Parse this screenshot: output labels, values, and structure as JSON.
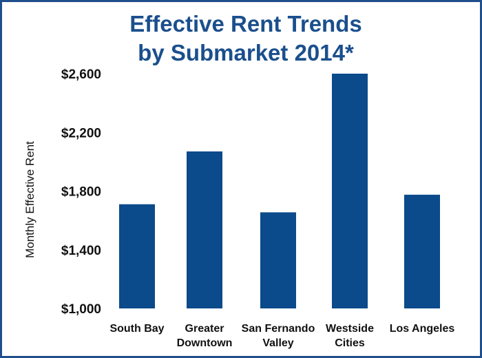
{
  "chart_data": {
    "type": "bar",
    "title_lines": [
      "Effective Rent Trends",
      "by Submarket 2014*"
    ],
    "ylabel": "Monthly Effective Rent",
    "xlabel": "",
    "categories": [
      [
        "South Bay"
      ],
      [
        "Greater",
        "Downtown"
      ],
      [
        "San Fernando",
        "Valley"
      ],
      [
        "Westside",
        "Cities"
      ],
      [
        "Los Angeles"
      ]
    ],
    "values": [
      1710,
      2070,
      1655,
      2600,
      1775
    ],
    "ylim": [
      1000,
      2600
    ],
    "yticks": [
      1000,
      1400,
      1800,
      2200,
      2600
    ],
    "ytick_labels": [
      "$1,000",
      "$1,400",
      "$1,800",
      "$2,200",
      "$2,600"
    ],
    "grid": false,
    "bar_color": "#0b4a8b"
  }
}
